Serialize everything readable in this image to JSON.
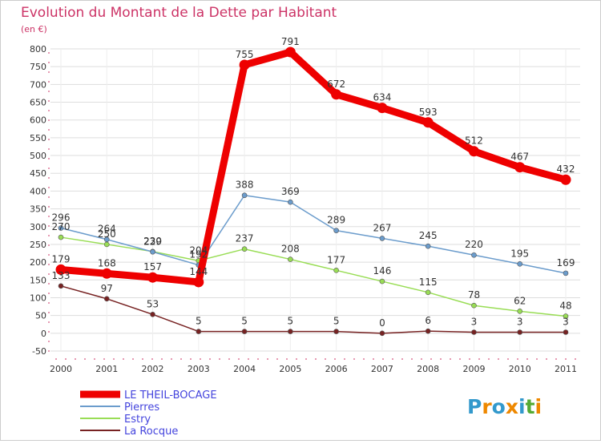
{
  "chart_data": {
    "type": "line",
    "title": "Evolution du Montant de la Dette par Habitant",
    "subtitle": "(en €)",
    "xlabel": "",
    "ylabel": "",
    "ylim": [
      -50,
      800
    ],
    "y_ticks": [
      -50,
      0,
      50,
      100,
      150,
      200,
      250,
      300,
      350,
      400,
      450,
      500,
      550,
      600,
      650,
      700,
      750,
      800
    ],
    "categories": [
      "2000",
      "2001",
      "2002",
      "2003",
      "2004",
      "2005",
      "2006",
      "2007",
      "2008",
      "2009",
      "2010",
      "2011"
    ],
    "grid": true,
    "legend_position": "bottom-left",
    "series": [
      {
        "name": "LE THEIL-BOCAGE",
        "color": "#ee0000",
        "values": [
          179,
          168,
          157,
          144,
          755,
          791,
          672,
          634,
          593,
          512,
          467,
          432
        ]
      },
      {
        "name": "Pierres",
        "color": "#6b9ccc",
        "values": [
          296,
          264,
          229,
          192,
          388,
          369,
          289,
          267,
          245,
          220,
          195,
          169
        ]
      },
      {
        "name": "Estry",
        "color": "#99dd55",
        "values": [
          270,
          250,
          230,
          204,
          237,
          208,
          177,
          146,
          115,
          78,
          62,
          48
        ]
      },
      {
        "name": "La Rocque",
        "color": "#772222",
        "values": [
          133,
          97,
          53,
          5,
          5,
          5,
          5,
          0,
          6,
          3,
          3,
          3
        ]
      }
    ]
  },
  "logo": {
    "text": "Proxiti"
  }
}
